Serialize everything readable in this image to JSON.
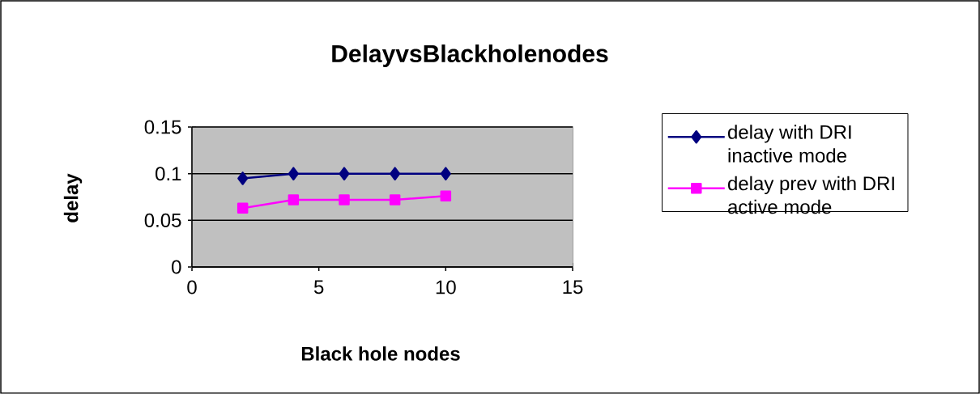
{
  "chart_data": {
    "type": "line",
    "title": "DelayvsBlackholenodes",
    "xlabel": "Black hole nodes",
    "ylabel": "delay",
    "x": [
      2,
      4,
      6,
      8,
      10
    ],
    "series": [
      {
        "name": "delay with DRI inactive mode",
        "color": "#000080",
        "marker": "diamond",
        "values": [
          0.095,
          0.1,
          0.1,
          0.1,
          0.1
        ]
      },
      {
        "name": "delay prev with DRI active mode",
        "color": "#ff00ff",
        "marker": "square",
        "values": [
          0.063,
          0.072,
          0.072,
          0.072,
          0.076
        ]
      }
    ],
    "xlim": [
      0,
      15
    ],
    "ylim": [
      0,
      0.15
    ],
    "xticks": [
      0,
      5,
      10,
      15
    ],
    "yticks": [
      0,
      0.05,
      0.1,
      0.15
    ],
    "grid": "y",
    "legend": "right",
    "line_style": "solid"
  }
}
